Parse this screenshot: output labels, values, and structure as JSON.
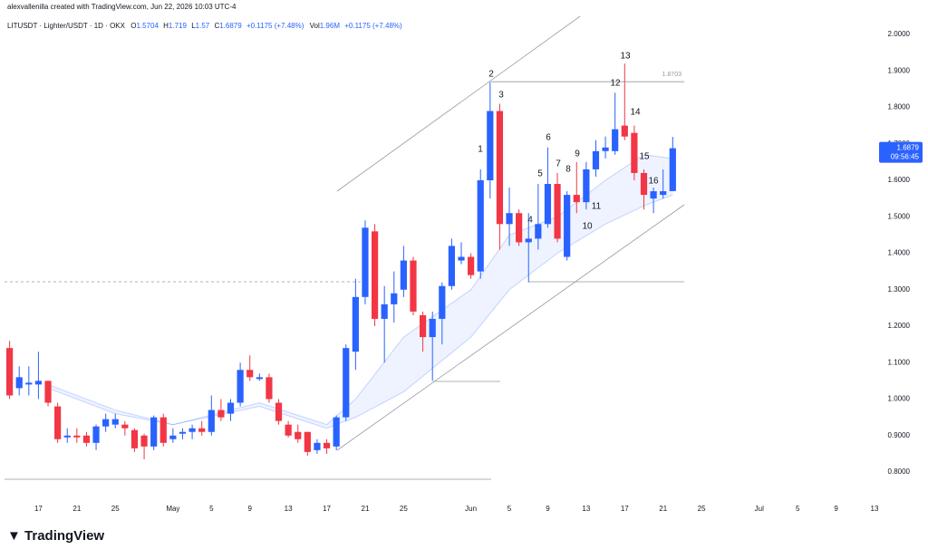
{
  "header": {
    "credit": "alexvallenilla created with TradingView.com, Jun 22, 2026 10:03 UTC-4"
  },
  "footer": {
    "brand": "TradingView"
  },
  "chart_data": {
    "type": "candlestick",
    "title": "LITUSDT · Lighter/USDT · 1D · OKX",
    "ohlc_labels": [
      "O",
      "H",
      "L",
      "C"
    ],
    "change_label": "+0.1175 (+7.48%)",
    "volume_label": "Vol",
    "volume": "1.96M",
    "volume_change": "+0.1175 (+7.48%)",
    "countdown": "09:56:45",
    "up_color": "#2962ff",
    "down_color": "#f23645",
    "grid": false,
    "x": [
      "2026-04-14",
      "2026-04-15",
      "2026-04-16",
      "2026-04-17",
      "2026-04-18",
      "2026-04-19",
      "2026-04-20",
      "2026-04-21",
      "2026-04-22",
      "2026-04-23",
      "2026-04-24",
      "2026-04-25",
      "2026-04-26",
      "2026-04-27",
      "2026-04-28",
      "2026-04-29",
      "2026-04-30",
      "2026-05-01",
      "2026-05-02",
      "2026-05-03",
      "2026-05-04",
      "2026-05-05",
      "2026-05-06",
      "2026-05-07",
      "2026-05-08",
      "2026-05-09",
      "2026-05-10",
      "2026-05-11",
      "2026-05-12",
      "2026-05-13",
      "2026-05-14",
      "2026-05-15",
      "2026-05-16",
      "2026-05-17",
      "2026-05-18",
      "2026-05-19",
      "2026-05-20",
      "2026-05-21",
      "2026-05-22",
      "2026-05-23",
      "2026-05-24",
      "2026-05-25",
      "2026-05-26",
      "2026-05-27",
      "2026-05-28",
      "2026-05-29",
      "2026-05-30",
      "2026-05-31",
      "2026-06-01",
      "2026-06-02",
      "2026-06-03",
      "2026-06-04",
      "2026-06-05",
      "2026-06-06",
      "2026-06-07",
      "2026-06-08",
      "2026-06-09",
      "2026-06-10",
      "2026-06-11",
      "2026-06-12",
      "2026-06-13",
      "2026-06-14",
      "2026-06-15",
      "2026-06-16",
      "2026-06-17",
      "2026-06-18",
      "2026-06-19",
      "2026-06-20",
      "2026-06-21",
      "2026-06-22"
    ],
    "open": [
      1.14,
      1.03,
      1.04,
      1.04,
      1.05,
      0.98,
      0.895,
      0.9,
      0.9,
      0.88,
      0.925,
      0.93,
      0.93,
      0.915,
      0.9,
      0.87,
      0.95,
      0.89,
      0.905,
      0.91,
      0.92,
      0.91,
      0.97,
      0.96,
      0.99,
      1.08,
      1.055,
      1.06,
      0.99,
      0.93,
      0.91,
      0.91,
      0.86,
      0.88,
      0.87,
      0.95,
      1.13,
      1.28,
      1.46,
      1.22,
      1.26,
      1.3,
      1.38,
      1.23,
      1.17,
      1.22,
      1.31,
      1.38,
      1.39,
      1.35,
      1.6,
      1.79,
      1.48,
      1.51,
      1.43,
      1.44,
      1.48,
      1.59,
      1.39,
      1.56,
      1.54,
      1.63,
      1.68,
      1.68,
      1.75,
      1.73,
      1.62,
      1.55,
      1.56,
      1.5704
    ],
    "high": [
      1.16,
      1.09,
      1.09,
      1.13,
      1.05,
      0.99,
      0.92,
      0.92,
      0.91,
      0.93,
      0.96,
      0.96,
      0.94,
      0.92,
      0.905,
      0.955,
      0.96,
      0.92,
      0.92,
      0.93,
      0.94,
      1.01,
      1.0,
      1.0,
      1.1,
      1.12,
      1.07,
      1.07,
      1.0,
      0.94,
      0.93,
      0.91,
      0.89,
      0.89,
      0.955,
      1.15,
      1.33,
      1.49,
      1.48,
      1.31,
      1.35,
      1.42,
      1.39,
      1.24,
      1.24,
      1.32,
      1.44,
      1.43,
      1.4,
      1.63,
      1.87,
      1.81,
      1.58,
      1.52,
      1.51,
      1.59,
      1.69,
      1.62,
      1.57,
      1.65,
      1.65,
      1.71,
      1.72,
      1.84,
      1.92,
      1.75,
      1.63,
      1.58,
      1.63,
      1.719
    ],
    "low": [
      1.0,
      1.01,
      1.01,
      1.0,
      0.98,
      0.88,
      0.88,
      0.88,
      0.87,
      0.86,
      0.91,
      0.92,
      0.9,
      0.855,
      0.835,
      0.86,
      0.87,
      0.88,
      0.89,
      0.89,
      0.9,
      0.9,
      0.94,
      0.94,
      0.98,
      1.05,
      1.05,
      0.99,
      0.93,
      0.895,
      0.88,
      0.845,
      0.85,
      0.85,
      0.86,
      0.94,
      1.08,
      1.26,
      1.2,
      1.1,
      1.21,
      1.28,
      1.23,
      1.13,
      1.05,
      1.15,
      1.3,
      1.37,
      1.33,
      1.33,
      1.55,
      1.41,
      1.42,
      1.42,
      1.32,
      1.41,
      1.47,
      1.43,
      1.38,
      1.51,
      1.52,
      1.61,
      1.66,
      1.67,
      1.71,
      1.6,
      1.52,
      1.51,
      1.55,
      1.57
    ],
    "close": [
      1.01,
      1.06,
      1.045,
      1.05,
      0.99,
      0.89,
      0.9,
      0.895,
      0.88,
      0.925,
      0.945,
      0.945,
      0.92,
      0.865,
      0.87,
      0.95,
      0.88,
      0.9,
      0.91,
      0.92,
      0.91,
      0.97,
      0.95,
      0.99,
      1.08,
      1.06,
      1.06,
      1.0,
      0.94,
      0.9,
      0.89,
      0.855,
      0.88,
      0.865,
      0.95,
      1.14,
      1.28,
      1.47,
      1.22,
      1.26,
      1.29,
      1.38,
      1.24,
      1.17,
      1.22,
      1.31,
      1.42,
      1.39,
      1.34,
      1.6,
      1.79,
      1.48,
      1.51,
      1.43,
      1.44,
      1.48,
      1.59,
      1.44,
      1.56,
      1.54,
      1.63,
      1.68,
      1.69,
      1.74,
      1.72,
      1.62,
      1.56,
      1.57,
      1.57,
      1.6879
    ],
    "band": {
      "color": "#2962ff",
      "x": [
        "2026-04-18",
        "2026-04-25",
        "2026-05-01",
        "2026-05-10",
        "2026-05-17",
        "2026-05-20",
        "2026-05-25",
        "2026-06-01",
        "2026-06-05",
        "2026-06-10",
        "2026-06-15",
        "2026-06-19",
        "2026-06-22"
      ],
      "upper": [
        1.04,
        0.97,
        0.93,
        0.99,
        0.93,
        1.0,
        1.17,
        1.3,
        1.45,
        1.5,
        1.6,
        1.67,
        1.66
      ],
      "lower": [
        1.03,
        0.96,
        0.93,
        0.98,
        0.92,
        0.95,
        1.02,
        1.17,
        1.3,
        1.4,
        1.48,
        1.53,
        1.56
      ]
    },
    "levels": [
      1.8703
    ],
    "annotations": [
      "1",
      "2",
      "3",
      "4",
      "5",
      "6",
      "7",
      "8",
      "9",
      "10",
      "11",
      "12",
      "13",
      "14",
      "15",
      "16"
    ],
    "xlim": [
      "2026-04-13",
      "2026-07-13"
    ],
    "ylim": [
      0.7404,
      2.0447
    ],
    "yticks": [
      {
        "value": 0.8,
        "label": "0.8000"
      },
      {
        "value": 0.9,
        "label": "0.9000"
      },
      {
        "value": 1.0,
        "label": "1.0000"
      },
      {
        "value": 1.1,
        "label": "1.1000"
      },
      {
        "value": 1.2,
        "label": "1.2000"
      },
      {
        "value": 1.3,
        "label": "1.3000"
      },
      {
        "value": 1.4,
        "label": "1.4000"
      },
      {
        "value": 1.5,
        "label": "1.5000"
      },
      {
        "value": 1.6,
        "label": "1.6000"
      },
      {
        "value": 1.7,
        "label": "1.7000"
      },
      {
        "value": 1.8,
        "label": "1.8000"
      },
      {
        "value": 1.9,
        "label": "1.9000"
      },
      {
        "value": 2.0,
        "label": "2.0000"
      }
    ],
    "xticks": [
      {
        "value": "2026-04-17",
        "label": "17"
      },
      {
        "value": "2026-04-21",
        "label": "21"
      },
      {
        "value": "2026-04-25",
        "label": "25"
      },
      {
        "value": "2026-05-01",
        "label": "May"
      },
      {
        "value": "2026-05-05",
        "label": "5"
      },
      {
        "value": "2026-05-09",
        "label": "9"
      },
      {
        "value": "2026-05-13",
        "label": "13"
      },
      {
        "value": "2026-05-17",
        "label": "17"
      },
      {
        "value": "2026-05-21",
        "label": "21"
      },
      {
        "value": "2026-05-25",
        "label": "25"
      },
      {
        "value": "2026-06-01",
        "label": "Jun"
      },
      {
        "value": "2026-06-05",
        "label": "5"
      },
      {
        "value": "2026-06-09",
        "label": "9"
      },
      {
        "value": "2026-06-13",
        "label": "13"
      },
      {
        "value": "2026-06-17",
        "label": "17"
      },
      {
        "value": "2026-06-21",
        "label": "21"
      },
      {
        "value": "2026-06-25",
        "label": "25"
      },
      {
        "value": "2026-07-01",
        "label": "Jul"
      },
      {
        "value": "2026-07-05",
        "label": "5"
      },
      {
        "value": "2026-07-09",
        "label": "9"
      },
      {
        "value": "2026-07-13",
        "label": "13"
      }
    ]
  }
}
